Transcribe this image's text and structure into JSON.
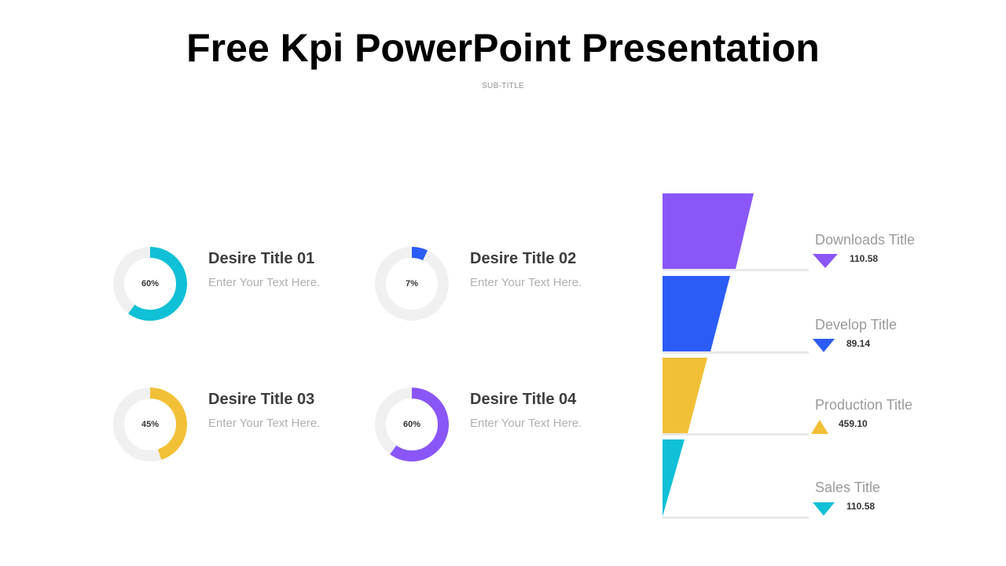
{
  "slide": {
    "title": "Free Kpi PowerPoint Presentation",
    "subtitle": "SUB-TITLE"
  },
  "track_color": "#f0f0f0",
  "kpis": [
    {
      "percent": 60,
      "label": "60%",
      "title": "Desire Title 01",
      "text": "Enter Your Text Here.",
      "color": "#0fc0d6"
    },
    {
      "percent": 7,
      "label": "7%",
      "title": "Desire Title 02",
      "text": "Enter Your Text Here.",
      "color": "#2b5cf6"
    },
    {
      "percent": 45,
      "label": "45%",
      "title": "Desire Title 03",
      "text": "Enter Your Text Here.",
      "color": "#f2c037"
    },
    {
      "percent": 60,
      "label": "60%",
      "title": "Desire Title 04",
      "text": "Enter Your Text Here.",
      "color": "#8a56f7"
    }
  ],
  "funnel": [
    {
      "title": "Downloads Title",
      "value": "110.58",
      "color": "#8a56f7",
      "direction": "down"
    },
    {
      "title": "Develop Title",
      "value": "89.14",
      "color": "#2b5cf6",
      "direction": "down"
    },
    {
      "title": "Production Title",
      "value": "459.10",
      "color": "#f2c037",
      "direction": "up"
    },
    {
      "title": "Sales Title",
      "value": "110.58",
      "color": "#0fc0d6",
      "direction": "down"
    }
  ]
}
